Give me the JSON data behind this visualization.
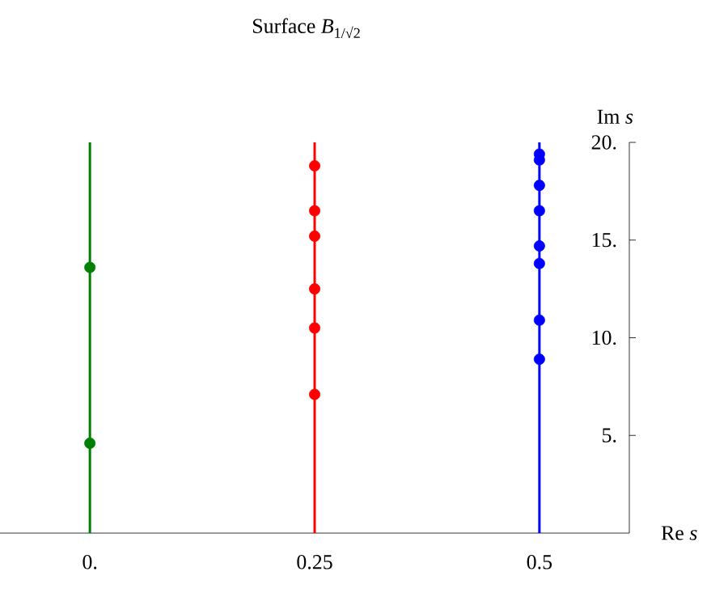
{
  "chart_data": {
    "type": "scatter",
    "title": "Surface *B*$_{1/√2}$",
    "xlabel": "Re *s*",
    "ylabel": "Im *s*",
    "xlim": [
      -0.1,
      0.6
    ],
    "ylim": [
      0,
      20
    ],
    "xticks": [
      {
        "value": 0,
        "label": "0."
      },
      {
        "value": 0.25,
        "label": "0.25"
      },
      {
        "value": 0.5,
        "label": "0.5"
      }
    ],
    "yticks": [
      {
        "value": 5,
        "label": "5."
      },
      {
        "value": 10,
        "label": "10."
      },
      {
        "value": 15,
        "label": "15."
      },
      {
        "value": 20,
        "label": "20."
      }
    ],
    "grid": false,
    "marker": "circle",
    "ref_lines": [
      {
        "axis": "x",
        "value": 0,
        "color": "#008000"
      },
      {
        "axis": "x",
        "value": 0.25,
        "color": "#ff0000"
      },
      {
        "axis": "x",
        "value": 0.5,
        "color": "#0000ff"
      }
    ],
    "series": [
      {
        "color": "#008000",
        "x": [
          0,
          0
        ],
        "values": [
          13.6,
          4.6
        ]
      },
      {
        "color": "#ff0000",
        "x": [
          0.25,
          0.25,
          0.25,
          0.25,
          0.25,
          0.25
        ],
        "values": [
          18.8,
          16.5,
          15.2,
          12.5,
          10.5,
          7.1
        ]
      },
      {
        "color": "#0000ff",
        "x": [
          0.5,
          0.5,
          0.5,
          0.5,
          0.5,
          0.5,
          0.5,
          0.5
        ],
        "values": [
          19.4,
          19.1,
          17.8,
          16.5,
          14.7,
          13.8,
          10.9,
          8.9
        ]
      }
    ]
  }
}
